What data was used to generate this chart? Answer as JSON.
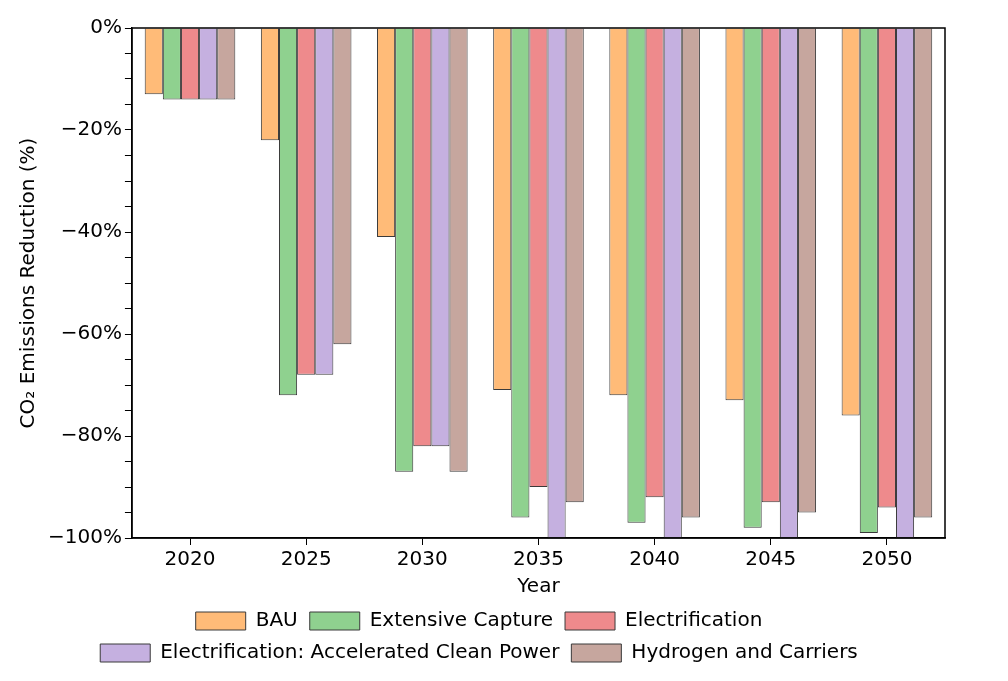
{
  "chart_data": {
    "type": "bar",
    "xlabel": "Year",
    "ylabel": "CO₂ Emissions Reduction (%)",
    "categories": [
      "2020",
      "2025",
      "2030",
      "2035",
      "2040",
      "2045",
      "2050"
    ],
    "series": [
      {
        "name": "BAU",
        "color": "#ffbb78",
        "values": [
          -13,
          -22,
          -41,
          -71,
          -72,
          -73,
          -76
        ]
      },
      {
        "name": "Extensive Capture",
        "color": "#8fd18f",
        "values": [
          -14,
          -72,
          -87,
          -96,
          -97,
          -98,
          -99
        ]
      },
      {
        "name": "Electrification",
        "color": "#ee8a8c",
        "values": [
          -14,
          -68,
          -82,
          -90,
          -92,
          -93,
          -94
        ]
      },
      {
        "name": "Electrification: Accelerated Clean Power",
        "color": "#c5b0e0",
        "values": [
          -14,
          -68,
          -82,
          -100,
          -100,
          -100,
          -100
        ]
      },
      {
        "name": "Hydrogen and Carriers",
        "color": "#c6a69e",
        "values": [
          -14,
          -62,
          -87,
          -93,
          -96,
          -95,
          -96
        ]
      }
    ],
    "ylim": [
      -100,
      0
    ],
    "yticks": [
      {
        "value": 0,
        "label": "0%"
      },
      {
        "value": -5,
        "label": null
      },
      {
        "value": -10,
        "label": null
      },
      {
        "value": -15,
        "label": null
      },
      {
        "value": -20,
        "label": "−20%"
      },
      {
        "value": -25,
        "label": null
      },
      {
        "value": -30,
        "label": null
      },
      {
        "value": -35,
        "label": null
      },
      {
        "value": -40,
        "label": "−40%"
      },
      {
        "value": -45,
        "label": null
      },
      {
        "value": -50,
        "label": null
      },
      {
        "value": -55,
        "label": null
      },
      {
        "value": -60,
        "label": "−60%"
      },
      {
        "value": -65,
        "label": null
      },
      {
        "value": -70,
        "label": null
      },
      {
        "value": -75,
        "label": null
      },
      {
        "value": -80,
        "label": "−80%"
      },
      {
        "value": -85,
        "label": null
      },
      {
        "value": -90,
        "label": null
      },
      {
        "value": -95,
        "label": null
      },
      {
        "value": -100,
        "label": "−100%"
      }
    ],
    "grid": false,
    "legend": "bottom"
  }
}
